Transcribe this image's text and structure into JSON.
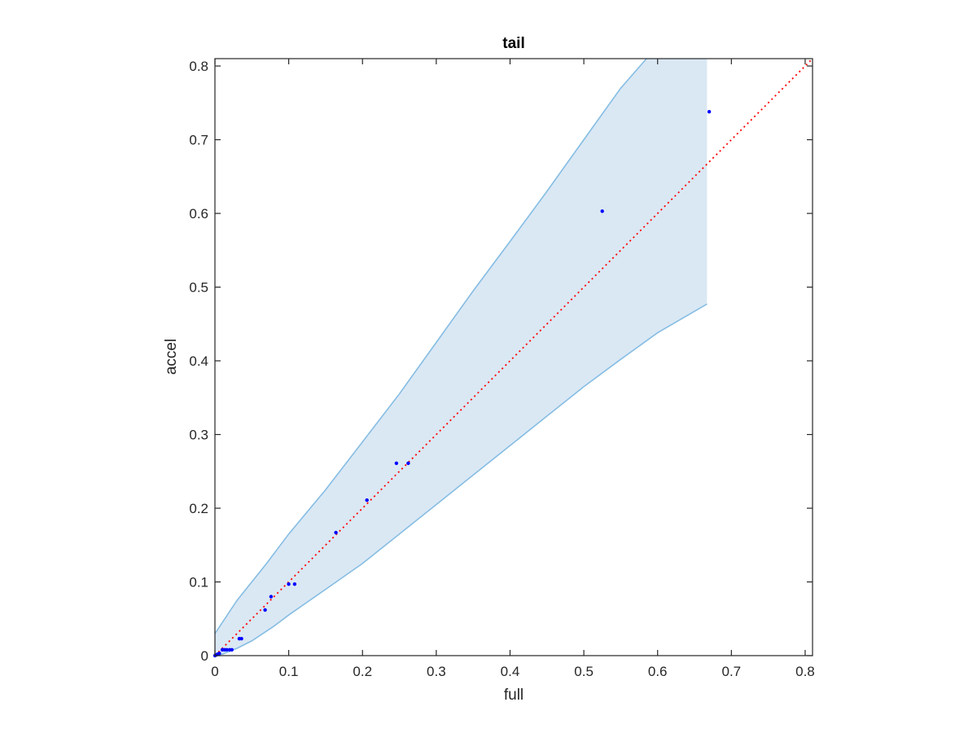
{
  "chart_data": {
    "type": "scatter",
    "title": "tail",
    "xlabel": "full",
    "ylabel": "accel",
    "xlim": [
      0,
      0.81
    ],
    "ylim": [
      0,
      0.81
    ],
    "xticks": [
      0,
      0.1,
      0.2,
      0.3,
      0.4,
      0.5,
      0.6,
      0.7,
      0.8
    ],
    "yticks": [
      0,
      0.1,
      0.2,
      0.3,
      0.4,
      0.5,
      0.6,
      0.7,
      0.8
    ],
    "xtick_labels": [
      "0",
      "0.1",
      "0.2",
      "0.3",
      "0.4",
      "0.5",
      "0.6",
      "0.7",
      "0.8"
    ],
    "ytick_labels": [
      "0",
      "0.1",
      "0.2",
      "0.3",
      "0.4",
      "0.5",
      "0.6",
      "0.7",
      "0.8"
    ],
    "grid": false,
    "reference_line": {
      "from": [
        0,
        0
      ],
      "to": [
        0.81,
        0.81
      ],
      "style": "dotted",
      "color": "#ff0000"
    },
    "band": {
      "fill": "#dae8f4",
      "edge": "#86bde3",
      "upper": [
        [
          0,
          0.03
        ],
        [
          0.01,
          0.045
        ],
        [
          0.02,
          0.06
        ],
        [
          0.03,
          0.075
        ],
        [
          0.05,
          0.1
        ],
        [
          0.07,
          0.125
        ],
        [
          0.1,
          0.165
        ],
        [
          0.15,
          0.225
        ],
        [
          0.2,
          0.29
        ],
        [
          0.25,
          0.355
        ],
        [
          0.3,
          0.425
        ],
        [
          0.35,
          0.495
        ],
        [
          0.4,
          0.562
        ],
        [
          0.45,
          0.63
        ],
        [
          0.5,
          0.7
        ],
        [
          0.55,
          0.77
        ],
        [
          0.585,
          0.81
        ],
        [
          0.667,
          0.81
        ]
      ],
      "lower": [
        [
          0,
          0.0
        ],
        [
          0.01,
          0.002
        ],
        [
          0.03,
          0.01
        ],
        [
          0.05,
          0.02
        ],
        [
          0.08,
          0.04
        ],
        [
          0.1,
          0.055
        ],
        [
          0.15,
          0.09
        ],
        [
          0.2,
          0.125
        ],
        [
          0.25,
          0.165
        ],
        [
          0.3,
          0.205
        ],
        [
          0.35,
          0.245
        ],
        [
          0.4,
          0.285
        ],
        [
          0.45,
          0.325
        ],
        [
          0.5,
          0.365
        ],
        [
          0.55,
          0.402
        ],
        [
          0.6,
          0.438
        ],
        [
          0.667,
          0.477
        ]
      ]
    },
    "series": [
      {
        "color": "#0000ff",
        "points": [
          [
            0,
            0
          ],
          [
            0.002,
            0.001
          ],
          [
            0.004,
            0.002
          ],
          [
            0.006,
            0.003
          ],
          [
            0.01,
            0.008
          ],
          [
            0.013,
            0.008
          ],
          [
            0.016,
            0.008
          ],
          [
            0.02,
            0.008
          ],
          [
            0.023,
            0.008
          ],
          [
            0.033,
            0.023
          ],
          [
            0.036,
            0.023
          ],
          [
            0.068,
            0.062
          ],
          [
            0.076,
            0.08
          ],
          [
            0.1,
            0.097
          ],
          [
            0.108,
            0.097
          ],
          [
            0.164,
            0.167
          ],
          [
            0.206,
            0.211
          ],
          [
            0.246,
            0.261
          ],
          [
            0.262,
            0.261
          ],
          [
            0.525,
            0.603
          ],
          [
            0.67,
            0.738
          ]
        ]
      }
    ]
  }
}
